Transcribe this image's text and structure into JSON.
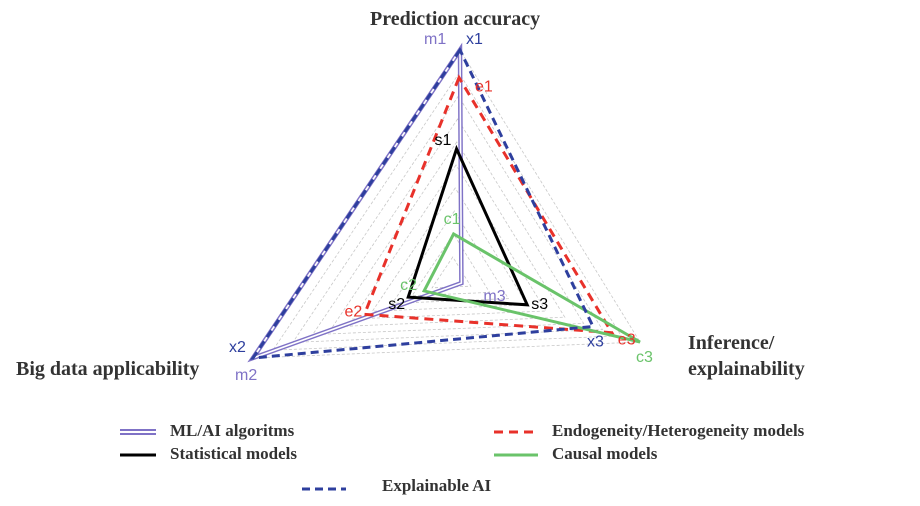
{
  "axes": {
    "top": "Prediction accuracy",
    "left": "Big data applicability",
    "right_line1": "Inference/",
    "right_line2": "explainability"
  },
  "chart_data": {
    "type": "radar",
    "axes": [
      "Prediction accuracy",
      "Big data applicability",
      "Inference/ explainability"
    ],
    "range": [
      0,
      1
    ],
    "grid": true,
    "grid_rings": 10,
    "legend_position": "bottom",
    "series": [
      {
        "name": "ML/AI algoritms",
        "labels": [
          "m1",
          "m2",
          "m3"
        ],
        "values": [
          1.0,
          1.0,
          0.05
        ],
        "color": "#7f72c6",
        "style": "solid-double"
      },
      {
        "name": "Statistical models",
        "labels": [
          "s1",
          "s2",
          "s3"
        ],
        "values": [
          0.57,
          0.22,
          0.4
        ],
        "color": "#000000",
        "style": "solid"
      },
      {
        "name": "Endogeneity/Heterogeneity models",
        "labels": [
          "e1",
          "e2",
          "e3"
        ],
        "values": [
          0.88,
          0.44,
          0.85
        ],
        "color": "#e8312a",
        "style": "dashed"
      },
      {
        "name": "Causal models",
        "labels": [
          "c1",
          "c2",
          "c3"
        ],
        "values": [
          0.2,
          0.14,
          1.0
        ],
        "color": "#6ac36a",
        "style": "solid"
      },
      {
        "name": "Explainable AI",
        "labels": [
          "x1",
          "x2",
          "x3"
        ],
        "values": [
          1.0,
          1.0,
          0.75
        ],
        "color": "#2e3f9e",
        "style": "dashed"
      }
    ]
  },
  "legend": [
    {
      "name": "ML/AI algoritms"
    },
    {
      "name": "Statistical models"
    },
    {
      "name": "Endogeneity/Heterogeneity models"
    },
    {
      "name": "Causal models"
    },
    {
      "name": "Explainable AI"
    }
  ]
}
